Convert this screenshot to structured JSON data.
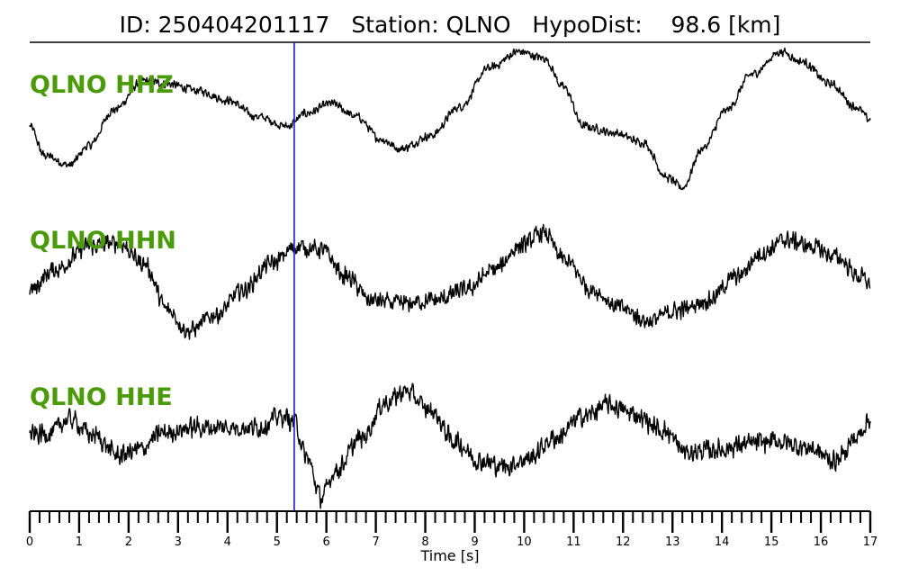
{
  "header": {
    "id_label": "ID:",
    "id_value": "250404201117",
    "station_label": "Station:",
    "station_value": "QLNO",
    "hypodist_label": "HypoDist:",
    "hypodist_value": "98.6",
    "hypodist_unit": "[km]"
  },
  "colors": {
    "trace": "#000000",
    "label": "#4a9a0a",
    "pick": "#1a1acc",
    "axis": "#000000"
  },
  "chart_data": {
    "type": "line",
    "xlabel": "Time [s]",
    "xlim": [
      0,
      17
    ],
    "major_ticks": [
      0,
      1,
      2,
      3,
      4,
      5,
      6,
      7,
      8,
      9,
      10,
      11,
      12,
      13,
      14,
      15,
      16,
      17
    ],
    "minor_tick_step": 0.2,
    "pick_time": 5.35,
    "traces": [
      {
        "label": "QLNO HHZ",
        "noise": 0.08,
        "keypoints": [
          [
            0,
            -0.1
          ],
          [
            0.3,
            -0.55
          ],
          [
            0.8,
            -0.7
          ],
          [
            1.2,
            -0.4
          ],
          [
            1.7,
            0.15
          ],
          [
            2.3,
            0.6
          ],
          [
            2.8,
            0.55
          ],
          [
            3.4,
            0.45
          ],
          [
            4.0,
            0.3
          ],
          [
            4.6,
            0.05
          ],
          [
            5.2,
            -0.1
          ],
          [
            5.6,
            0.1
          ],
          [
            6.1,
            0.25
          ],
          [
            6.6,
            0.05
          ],
          [
            7.1,
            -0.3
          ],
          [
            7.5,
            -0.45
          ],
          [
            8.1,
            -0.25
          ],
          [
            8.7,
            0.2
          ],
          [
            9.3,
            0.8
          ],
          [
            9.9,
            1.05
          ],
          [
            10.4,
            0.95
          ],
          [
            10.8,
            0.5
          ],
          [
            11.2,
            -0.1
          ],
          [
            11.8,
            -0.2
          ],
          [
            12.4,
            -0.35
          ],
          [
            12.9,
            -0.9
          ],
          [
            13.2,
            -1.05
          ],
          [
            13.6,
            -0.45
          ],
          [
            14.1,
            0.15
          ],
          [
            14.6,
            0.7
          ],
          [
            15.2,
            1.05
          ],
          [
            15.6,
            0.9
          ],
          [
            16.2,
            0.55
          ],
          [
            16.7,
            0.2
          ],
          [
            17.0,
            0.0
          ]
        ]
      },
      {
        "label": "QLNO HHN",
        "noise": 0.16,
        "keypoints": [
          [
            0,
            -0.3
          ],
          [
            0.5,
            0.0
          ],
          [
            1.2,
            0.35
          ],
          [
            1.8,
            0.4
          ],
          [
            2.3,
            0.1
          ],
          [
            2.8,
            -0.6
          ],
          [
            3.2,
            -0.9
          ],
          [
            3.8,
            -0.65
          ],
          [
            4.3,
            -0.3
          ],
          [
            4.9,
            0.1
          ],
          [
            5.4,
            0.35
          ],
          [
            5.9,
            0.3
          ],
          [
            6.4,
            -0.1
          ],
          [
            6.9,
            -0.45
          ],
          [
            7.5,
            -0.5
          ],
          [
            8.2,
            -0.45
          ],
          [
            8.8,
            -0.3
          ],
          [
            9.4,
            0.0
          ],
          [
            9.9,
            0.35
          ],
          [
            10.4,
            0.55
          ],
          [
            10.8,
            0.15
          ],
          [
            11.4,
            -0.3
          ],
          [
            11.9,
            -0.55
          ],
          [
            12.5,
            -0.75
          ],
          [
            13.1,
            -0.6
          ],
          [
            13.7,
            -0.45
          ],
          [
            14.3,
            -0.1
          ],
          [
            14.8,
            0.25
          ],
          [
            15.3,
            0.45
          ],
          [
            15.8,
            0.35
          ],
          [
            16.3,
            0.2
          ],
          [
            16.8,
            -0.1
          ],
          [
            17.0,
            -0.2
          ]
        ]
      },
      {
        "label": "QLNO HHE",
        "noise": 0.22,
        "keypoints": [
          [
            0,
            -0.1
          ],
          [
            0.4,
            -0.05
          ],
          [
            0.8,
            0.2
          ],
          [
            1.3,
            -0.1
          ],
          [
            1.8,
            -0.45
          ],
          [
            2.2,
            -0.35
          ],
          [
            2.7,
            -0.05
          ],
          [
            3.3,
            0.05
          ],
          [
            4.0,
            0.05
          ],
          [
            4.6,
            0.05
          ],
          [
            5.1,
            0.25
          ],
          [
            5.35,
            0.15
          ],
          [
            5.6,
            -0.5
          ],
          [
            5.9,
            -1.2
          ],
          [
            6.2,
            -0.7
          ],
          [
            6.7,
            -0.15
          ],
          [
            7.2,
            0.5
          ],
          [
            7.6,
            0.7
          ],
          [
            8.1,
            0.35
          ],
          [
            8.6,
            -0.2
          ],
          [
            9.1,
            -0.55
          ],
          [
            9.6,
            -0.65
          ],
          [
            10.1,
            -0.5
          ],
          [
            10.6,
            -0.15
          ],
          [
            11.2,
            0.25
          ],
          [
            11.7,
            0.45
          ],
          [
            12.2,
            0.3
          ],
          [
            12.8,
            0.0
          ],
          [
            13.3,
            -0.4
          ],
          [
            13.9,
            -0.35
          ],
          [
            14.5,
            -0.25
          ],
          [
            15.1,
            -0.2
          ],
          [
            15.7,
            -0.3
          ],
          [
            16.3,
            -0.55
          ],
          [
            16.7,
            -0.15
          ],
          [
            17.0,
            0.2
          ]
        ]
      }
    ]
  }
}
